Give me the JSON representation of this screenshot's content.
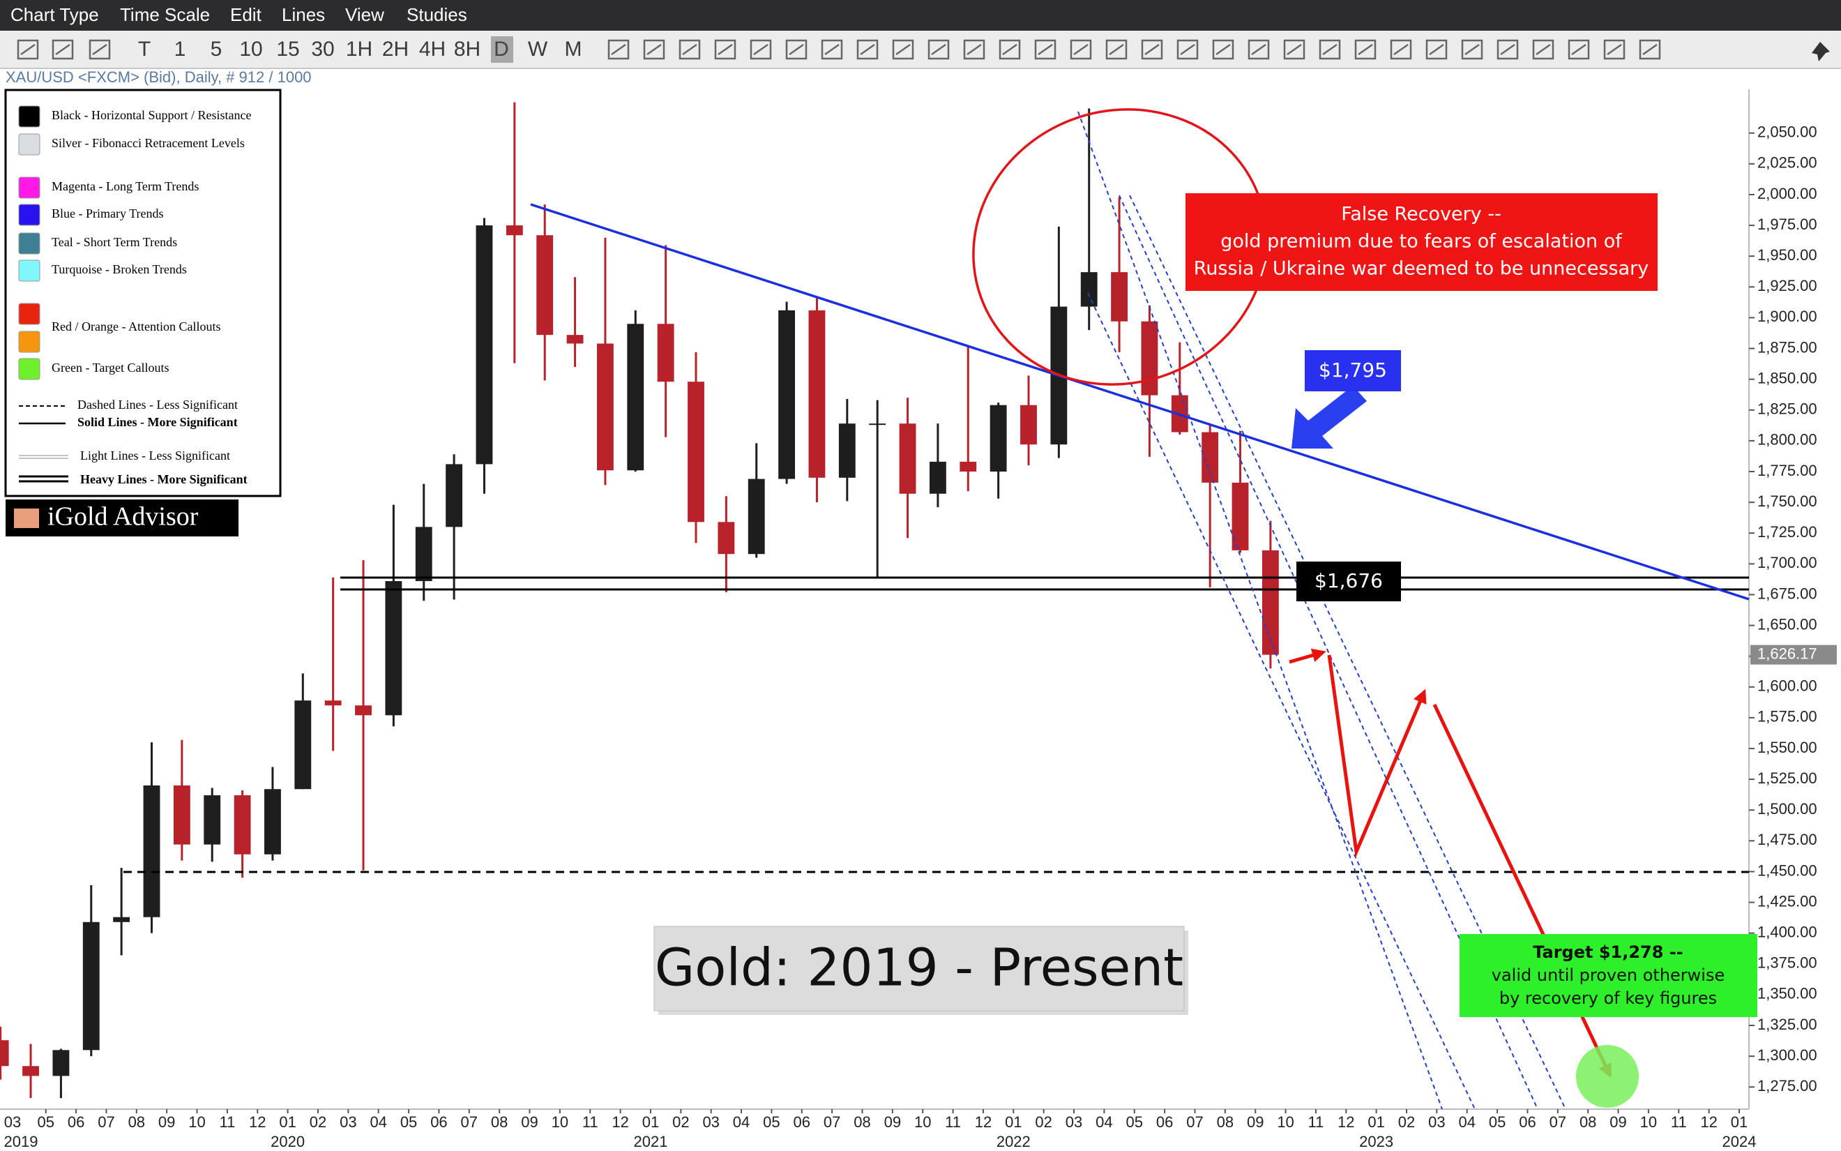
{
  "menu": [
    "Chart Type",
    "Time Scale",
    "Edit",
    "Lines",
    "View",
    "Studies"
  ],
  "toolbar_intervals": [
    "T",
    "1",
    "5",
    "10",
    "15",
    "30",
    "1H",
    "2H",
    "4H",
    "8H",
    "D",
    "W",
    "M"
  ],
  "active_interval": "D",
  "symbol_info": "XAU/USD <FXCM> (Bid), Daily, # 912 / 1000",
  "legend_box": {
    "items": [
      {
        "colors": [
          "#000000"
        ],
        "label": "Black - Horizontal Support / Resistance"
      },
      {
        "colors": [
          "#d9dde2"
        ],
        "label": "Silver - Fibonacci Retracement Levels"
      },
      {
        "colors": [
          "#ff19e6"
        ],
        "label": "Magenta - Long Term Trends"
      },
      {
        "colors": [
          "#2a12f0"
        ],
        "label": "Blue - Primary Trends"
      },
      {
        "colors": [
          "#3f7f93"
        ],
        "label": "Teal - Short Term Trends"
      },
      {
        "colors": [
          "#7ff7fb"
        ],
        "label": "Turquoise - Broken Trends"
      },
      {
        "colors": [
          "#e8240f",
          "#f5960f"
        ],
        "label": "Red / Orange - Attention Callouts"
      },
      {
        "colors": [
          "#6ef02a"
        ],
        "label": "Green - Target Callouts"
      }
    ],
    "line_items": [
      {
        "style": "dashed",
        "bold": false,
        "label": "Dashed Lines - Less Significant"
      },
      {
        "style": "solid",
        "bold": true,
        "label": "Solid Lines - More Significant"
      },
      {
        "style": "light",
        "bold": false,
        "label": "Light Lines - Less Significant"
      },
      {
        "style": "heavy",
        "bold": true,
        "label": "Heavy Lines - More Significant"
      }
    ]
  },
  "brand": "iGold Advisor",
  "annotations": {
    "false_recovery": [
      "False Recovery --",
      "gold premium due to fears of escalation of",
      "Russia / Ukraine war deemed to be unnecessary"
    ],
    "resistance_label": "$1,795",
    "support_label": "$1,676",
    "target": [
      "Target $1,278 --",
      "valid until proven otherwise",
      "by recovery of key figures"
    ],
    "title_box": "Gold: 2019 - Present"
  },
  "chart_data": {
    "type": "candlestick",
    "up_color": "#1e1e1e",
    "down_color": "#b8232b",
    "x": [
      "2019-03",
      "2019-04",
      "2019-05",
      "2019-06",
      "2019-07",
      "2019-08",
      "2019-09",
      "2019-10",
      "2019-11",
      "2019-12",
      "2020-01",
      "2020-02",
      "2020-03",
      "2020-04",
      "2020-05",
      "2020-06",
      "2020-07",
      "2020-08",
      "2020-09",
      "2020-10",
      "2020-11",
      "2020-12",
      "2021-01",
      "2021-02",
      "2021-03",
      "2021-04",
      "2021-05",
      "2021-06",
      "2021-07",
      "2021-08",
      "2021-09",
      "2021-10",
      "2021-11",
      "2021-12",
      "2022-01",
      "2022-02",
      "2022-03",
      "2022-04",
      "2022-05",
      "2022-06",
      "2022-07",
      "2022-08",
      "2022-09"
    ],
    "open": [
      1313,
      1292,
      1284,
      1305,
      1409,
      1413,
      1520,
      1472,
      1512,
      1464,
      1517,
      1589,
      1585,
      1577,
      1686,
      1730,
      1781,
      1975,
      1967,
      1886,
      1879,
      1776,
      1895,
      1848,
      1734,
      1708,
      1769,
      1906,
      1770,
      1814,
      1814,
      1757,
      1783,
      1775,
      1829,
      1797,
      1909,
      1937,
      1897,
      1837,
      1807,
      1766,
      1711
    ],
    "high": [
      1324,
      1310,
      1306,
      1439,
      1453,
      1555,
      1557,
      1518,
      1516,
      1535,
      1611,
      1689,
      1703,
      1748,
      1765,
      1789,
      1981,
      2075,
      1992,
      1933,
      1965,
      1906,
      1959,
      1872,
      1755,
      1798,
      1913,
      1917,
      1834,
      1833,
      1835,
      1814,
      1877,
      1831,
      1853,
      1974,
      2070,
      1998,
      1910,
      1880,
      1814,
      1808,
      1735
    ],
    "low": [
      1281,
      1266,
      1266,
      1300,
      1382,
      1400,
      1459,
      1458,
      1445,
      1459,
      1517,
      1548,
      1451,
      1568,
      1670,
      1671,
      1757,
      1863,
      1849,
      1860,
      1764,
      1775,
      1803,
      1717,
      1677,
      1705,
      1765,
      1750,
      1751,
      1688,
      1721,
      1746,
      1759,
      1753,
      1780,
      1786,
      1890,
      1872,
      1787,
      1805,
      1681,
      1709,
      1615
    ],
    "close": [
      1292,
      1284,
      1305,
      1409,
      1413,
      1520,
      1472,
      1512,
      1464,
      1517,
      1589,
      1585,
      1577,
      1686,
      1730,
      1781,
      1975,
      1967,
      1886,
      1879,
      1776,
      1895,
      1848,
      1734,
      1708,
      1769,
      1906,
      1770,
      1814,
      1814,
      1757,
      1783,
      1775,
      1829,
      1797,
      1909,
      1937,
      1897,
      1837,
      1807,
      1766,
      1711,
      1626.17
    ],
    "last_price": {
      "value": 1626.17,
      "label": "1,626.17"
    },
    "ylim": [
      1257,
      2085
    ],
    "yticks": [
      {
        "value": 1275,
        "label": "1,275.00"
      },
      {
        "value": 1300,
        "label": "1,300.00"
      },
      {
        "value": 1325,
        "label": "1,325.00"
      },
      {
        "value": 1350,
        "label": "1,350.00"
      },
      {
        "value": 1375,
        "label": "1,375.00"
      },
      {
        "value": 1400,
        "label": "1,400.00"
      },
      {
        "value": 1425,
        "label": "1,425.00"
      },
      {
        "value": 1450,
        "label": "1,450.00"
      },
      {
        "value": 1475,
        "label": "1,475.00"
      },
      {
        "value": 1500,
        "label": "1,500.00"
      },
      {
        "value": 1525,
        "label": "1,525.00"
      },
      {
        "value": 1550,
        "label": "1,550.00"
      },
      {
        "value": 1575,
        "label": "1,575.00"
      },
      {
        "value": 1600,
        "label": "1,600.00"
      },
      {
        "value": 1625,
        "label": "1,625.00"
      },
      {
        "value": 1650,
        "label": "1,650.00"
      },
      {
        "value": 1675,
        "label": "1,675.00"
      },
      {
        "value": 1700,
        "label": "1,700.00"
      },
      {
        "value": 1725,
        "label": "1,725.00"
      },
      {
        "value": 1750,
        "label": "1,750.00"
      },
      {
        "value": 1775,
        "label": "1,775.00"
      },
      {
        "value": 1800,
        "label": "1,800.00"
      },
      {
        "value": 1825,
        "label": "1,825.00"
      },
      {
        "value": 1850,
        "label": "1,850.00"
      },
      {
        "value": 1875,
        "label": "1,875.00"
      },
      {
        "value": 1900,
        "label": "1,900.00"
      },
      {
        "value": 1925,
        "label": "1,925.00"
      },
      {
        "value": 1950,
        "label": "1,950.00"
      },
      {
        "value": 1975,
        "label": "1,975.00"
      },
      {
        "value": 2000,
        "label": "2,000.00"
      },
      {
        "value": 2025,
        "label": "2,025.00"
      },
      {
        "value": 2050,
        "label": "2,050.00"
      }
    ],
    "xlim": [
      "2019-03",
      "2024-01"
    ],
    "xticks": [
      {
        "value": "2019-03",
        "label": "03"
      },
      {
        "value": "2019-05",
        "label": "05"
      },
      {
        "value": "2019-06",
        "label": "06"
      },
      {
        "value": "2019-07",
        "label": "07"
      },
      {
        "value": "2019-08",
        "label": "08"
      },
      {
        "value": "2019-09",
        "label": "09"
      },
      {
        "value": "2019-10",
        "label": "10"
      },
      {
        "value": "2019-11",
        "label": "11"
      },
      {
        "value": "2019-12",
        "label": "12"
      },
      {
        "value": "2020-01",
        "label": "01"
      },
      {
        "value": "2020-02",
        "label": "02"
      },
      {
        "value": "2020-03",
        "label": "03"
      },
      {
        "value": "2020-04",
        "label": "04"
      },
      {
        "value": "2020-05",
        "label": "05"
      },
      {
        "value": "2020-06",
        "label": "06"
      },
      {
        "value": "2020-07",
        "label": "07"
      },
      {
        "value": "2020-08",
        "label": "08"
      },
      {
        "value": "2020-09",
        "label": "09"
      },
      {
        "value": "2020-10",
        "label": "10"
      },
      {
        "value": "2020-11",
        "label": "11"
      },
      {
        "value": "2020-12",
        "label": "12"
      },
      {
        "value": "2021-01",
        "label": "01"
      },
      {
        "value": "2021-02",
        "label": "02"
      },
      {
        "value": "2021-03",
        "label": "03"
      },
      {
        "value": "2021-04",
        "label": "04"
      },
      {
        "value": "2021-05",
        "label": "05"
      },
      {
        "value": "2021-06",
        "label": "06"
      },
      {
        "value": "2021-07",
        "label": "07"
      },
      {
        "value": "2021-08",
        "label": "08"
      },
      {
        "value": "2021-09",
        "label": "09"
      },
      {
        "value": "2021-10",
        "label": "10"
      },
      {
        "value": "2021-11",
        "label": "11"
      },
      {
        "value": "2021-12",
        "label": "12"
      },
      {
        "value": "2022-01",
        "label": "01"
      },
      {
        "value": "2022-02",
        "label": "02"
      },
      {
        "value": "2022-03",
        "label": "03"
      },
      {
        "value": "2022-04",
        "label": "04"
      },
      {
        "value": "2022-05",
        "label": "05"
      },
      {
        "value": "2022-06",
        "label": "06"
      },
      {
        "value": "2022-07",
        "label": "07"
      },
      {
        "value": "2022-08",
        "label": "08"
      },
      {
        "value": "2022-09",
        "label": "09"
      },
      {
        "value": "2022-10",
        "label": "10"
      },
      {
        "value": "2022-11",
        "label": "11"
      },
      {
        "value": "2022-12",
        "label": "12"
      },
      {
        "value": "2023-01",
        "label": "01"
      },
      {
        "value": "2023-02",
        "label": "02"
      },
      {
        "value": "2023-03",
        "label": "03"
      },
      {
        "value": "2023-04",
        "label": "04"
      },
      {
        "value": "2023-05",
        "label": "05"
      },
      {
        "value": "2023-06",
        "label": "06"
      },
      {
        "value": "2023-07",
        "label": "07"
      },
      {
        "value": "2023-08",
        "label": "08"
      },
      {
        "value": "2023-09",
        "label": "09"
      },
      {
        "value": "2023-10",
        "label": "10"
      },
      {
        "value": "2023-11",
        "label": "11"
      },
      {
        "value": "2023-12",
        "label": "12"
      },
      {
        "value": "2024-01",
        "label": "01"
      }
    ],
    "year_labels": [
      {
        "value": "2019-03",
        "label": "2019"
      },
      {
        "value": "2020-01",
        "label": "2020"
      },
      {
        "value": "2021-01",
        "label": "2021"
      },
      {
        "value": "2022-01",
        "label": "2022"
      },
      {
        "value": "2023-01",
        "label": "2023"
      },
      {
        "value": "2024-01",
        "label": "2024"
      }
    ]
  }
}
